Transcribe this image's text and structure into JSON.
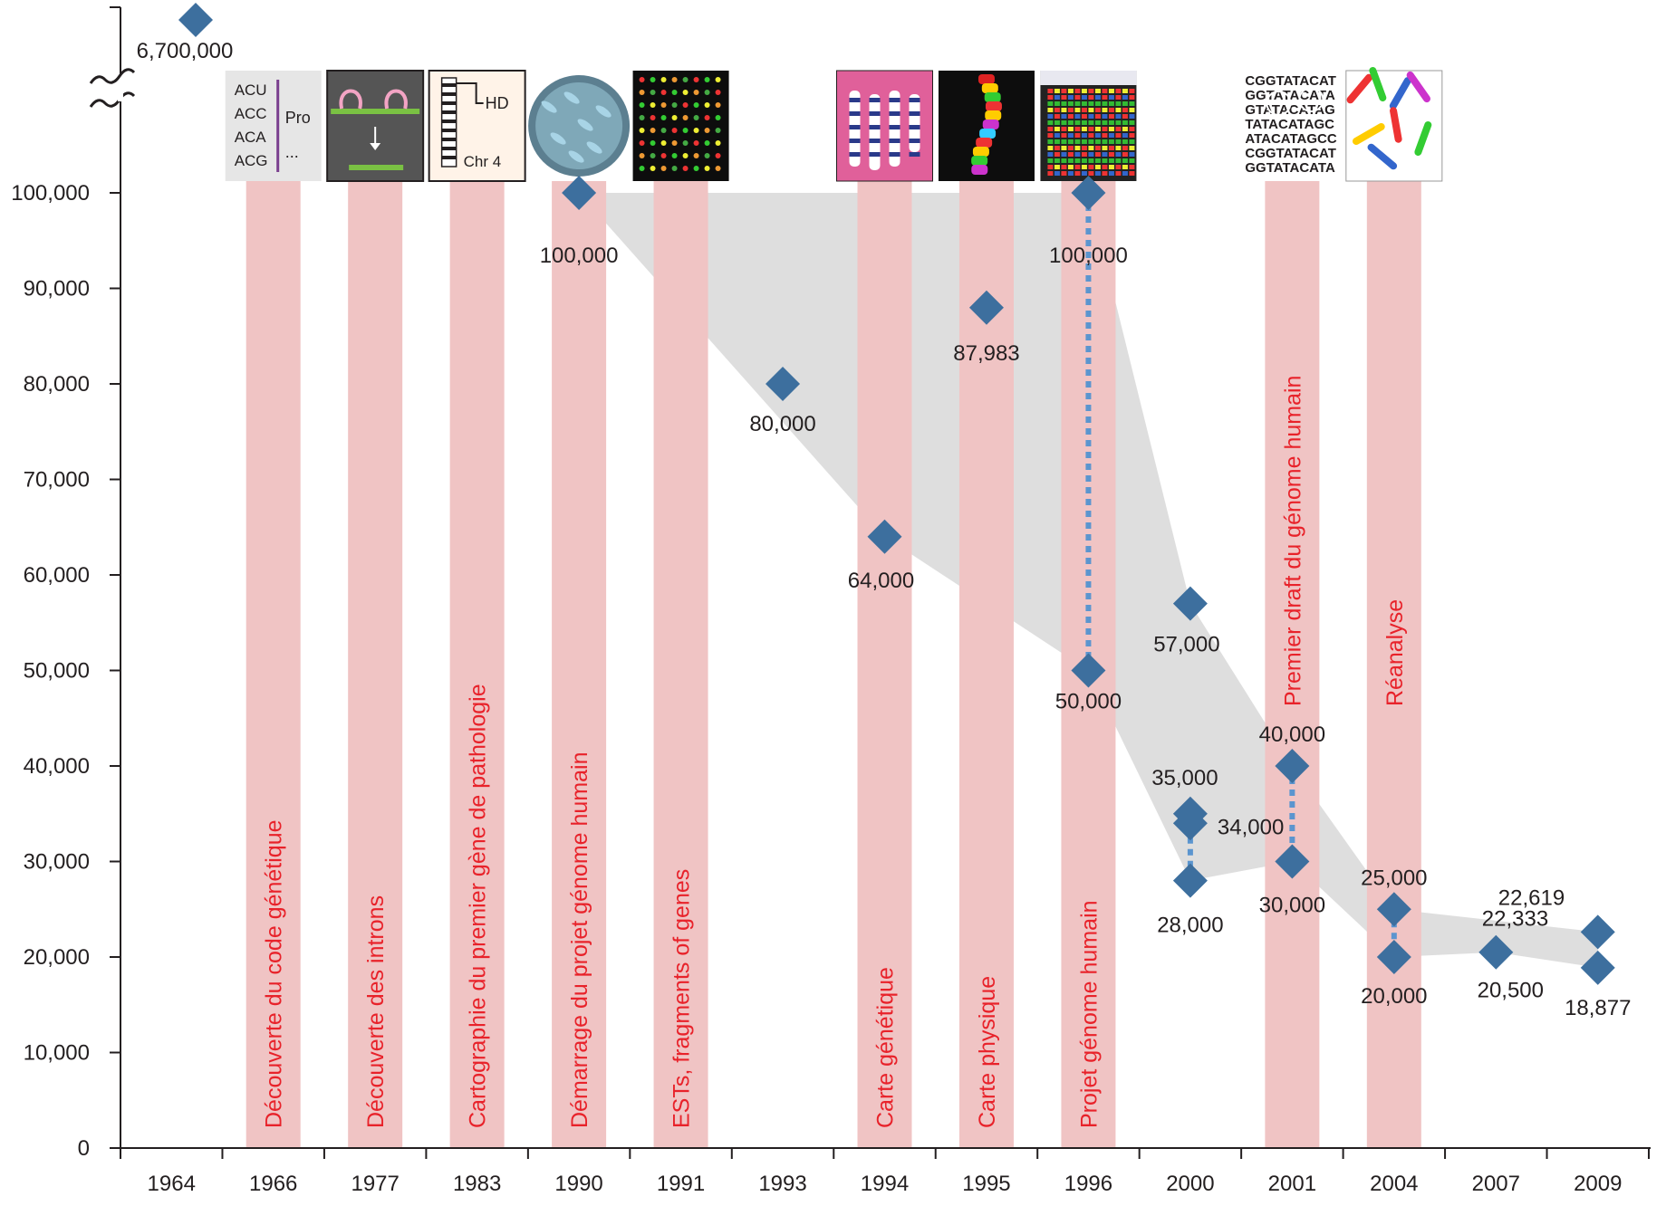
{
  "chart_data": {
    "type": "scatter",
    "title": "",
    "xlabel": "",
    "ylabel": "",
    "ylim": [
      0,
      100000
    ],
    "y_ticks": [
      "0",
      "10,000",
      "20,000",
      "30,000",
      "40,000",
      "50,000",
      "60,000",
      "70,000",
      "80,000",
      "90,000",
      "100,000"
    ],
    "y_break": true,
    "categories": [
      "1964",
      "1966",
      "1977",
      "1983",
      "1990",
      "1991",
      "1993",
      "1994",
      "1995",
      "1996",
      "2000",
      "2001",
      "2004",
      "2007",
      "2009"
    ],
    "events": [
      {
        "year": "1966",
        "label": "Découverte du code génétique"
      },
      {
        "year": "1977",
        "label": "Découverte des introns"
      },
      {
        "year": "1983",
        "label": "Cartographie du premier gène de pathologie"
      },
      {
        "year": "1990",
        "label": "Démarrage du projet génome humain"
      },
      {
        "year": "1991",
        "label": "ESTs, fragments of genes"
      },
      {
        "year": "1994",
        "label": "Carte génétique"
      },
      {
        "year": "1995",
        "label": "Carte physique"
      },
      {
        "year": "1996",
        "label": "Projet génome humain"
      },
      {
        "year": "2001",
        "label": "Premier draft du génome humain"
      },
      {
        "year": "2004",
        "label": "Réanalyse"
      }
    ],
    "points": [
      {
        "year": "1964",
        "value": 6700000,
        "label": "6,700,000",
        "broken_axis": true
      },
      {
        "year": "1990",
        "value": 100000,
        "label": "100,000"
      },
      {
        "year": "1993",
        "value": 80000,
        "label": "80,000"
      },
      {
        "year": "1994",
        "value": 64000,
        "label": "64,000"
      },
      {
        "year": "1995",
        "value": 87983,
        "label": "87,983"
      },
      {
        "year": "1996",
        "value": 100000,
        "label": "100,000"
      },
      {
        "year": "1996",
        "value": 50000,
        "label": "50,000"
      },
      {
        "year": "2000",
        "value": 57000,
        "label": "57,000"
      },
      {
        "year": "2000",
        "value": 35000,
        "label": "35,000"
      },
      {
        "year": "2000",
        "value": 34000,
        "label": "34,000"
      },
      {
        "year": "2000",
        "value": 28000,
        "label": "28,000"
      },
      {
        "year": "2001",
        "value": 40000,
        "label": "40,000"
      },
      {
        "year": "2001",
        "value": 30000,
        "label": "30,000"
      },
      {
        "year": "2004",
        "value": 25000,
        "label": "25,000"
      },
      {
        "year": "2004",
        "value": 20000,
        "label": "20,000"
      },
      {
        "year": "2007",
        "value": 20500,
        "label": "20,500"
      },
      {
        "year": "2009",
        "value": 22619,
        "label": "22,619"
      },
      {
        "year": "2009",
        "value": 18877,
        "label": "18,877"
      },
      {
        "year": "2009",
        "value": 22333,
        "label": "22,333"
      }
    ],
    "ranges": [
      {
        "year": "1996",
        "from": 50000,
        "to": 100000
      },
      {
        "year": "2000",
        "from": 28000,
        "to": 35000
      },
      {
        "year": "2001",
        "from": 30000,
        "to": 40000
      },
      {
        "year": "2004",
        "from": 20000,
        "to": 25000
      }
    ],
    "envelope_upper": [
      {
        "year": "1990",
        "value": 100000
      },
      {
        "year": "1996",
        "value": 100000
      },
      {
        "year": "2000",
        "value": 57000
      },
      {
        "year": "2001",
        "value": 40000
      },
      {
        "year": "2004",
        "value": 25000
      },
      {
        "year": "2009",
        "value": 22619
      }
    ],
    "envelope_lower": [
      {
        "year": "2009",
        "value": 18877
      },
      {
        "year": "2007",
        "value": 20500
      },
      {
        "year": "2004",
        "value": 20000
      },
      {
        "year": "2001",
        "value": 30000
      },
      {
        "year": "2000",
        "value": 28000
      },
      {
        "year": "1996",
        "value": 50000
      },
      {
        "year": "1994",
        "value": 64000
      },
      {
        "year": "1990",
        "value": 100000
      }
    ],
    "colors": {
      "marker": "#3d6f9e",
      "range_line": "#5b95cf",
      "envelope": "#dcdcdc",
      "event_band": "#f0c4c4",
      "event_text": "#e8222a",
      "axis": "#231f20"
    },
    "thumbnails": {
      "codons": [
        "ACU",
        "ACC",
        "ACA",
        "ACG"
      ],
      "codon_amino": "Pro",
      "codon_more": "...",
      "hd_label": "HD",
      "chr_label": "Chr 4",
      "sequence_text": "CGGTATACATAGCCTAGCGAT"
    }
  }
}
